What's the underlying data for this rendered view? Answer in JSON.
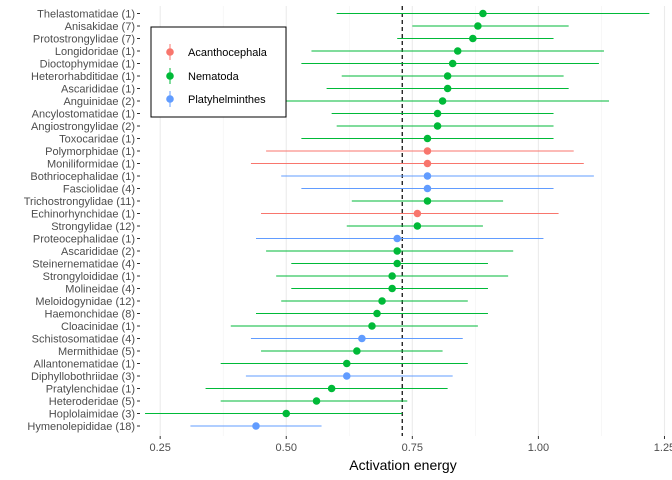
{
  "chart_data": {
    "type": "forest",
    "title": "",
    "xlabel": "Activation energy",
    "ylabel": "",
    "xlim": [
      0.21,
      1.255
    ],
    "xticks": [
      0.25,
      0.5,
      0.75,
      1.0,
      1.25
    ],
    "xtick_labels": [
      "0.25",
      "0.50",
      "0.75",
      "1.00",
      "1.25"
    ],
    "grid": "vertical major and minor lines",
    "reference_line": 0.73,
    "legend": {
      "position": "top-left (inside plot)",
      "entries": [
        "Acanthocephala",
        "Nematoda",
        "Platyhelminthes"
      ]
    },
    "colors": {
      "Acanthocephala": "#F8766D",
      "Nematoda": "#00BA38",
      "Platyhelminthes": "#619CFF"
    },
    "rows": [
      {
        "label": "Thelastomatidae (1)",
        "group": "Nematoda",
        "estimate": 0.89,
        "lower": 0.6,
        "upper": 1.22
      },
      {
        "label": "Anisakidae (7)",
        "group": "Nematoda",
        "estimate": 0.88,
        "lower": 0.75,
        "upper": 1.06
      },
      {
        "label": "Protostrongylidae (7)",
        "group": "Nematoda",
        "estimate": 0.87,
        "lower": 0.72,
        "upper": 1.03
      },
      {
        "label": "Longidoridae (1)",
        "group": "Nematoda",
        "estimate": 0.84,
        "lower": 0.55,
        "upper": 1.13
      },
      {
        "label": "Dioctophymidae (1)",
        "group": "Nematoda",
        "estimate": 0.83,
        "lower": 0.53,
        "upper": 1.12
      },
      {
        "label": "Heterorhabditidae (1)",
        "group": "Nematoda",
        "estimate": 0.82,
        "lower": 0.61,
        "upper": 1.05
      },
      {
        "label": "Ascarididae (1)",
        "group": "Nematoda",
        "estimate": 0.82,
        "lower": 0.58,
        "upper": 1.06
      },
      {
        "label": "Anguinidae (2)",
        "group": "Nematoda",
        "estimate": 0.81,
        "lower": 0.5,
        "upper": 1.14
      },
      {
        "label": "Ancylostomatidae (1)",
        "group": "Nematoda",
        "estimate": 0.8,
        "lower": 0.59,
        "upper": 1.03
      },
      {
        "label": "Angiostrongylidae (2)",
        "group": "Nematoda",
        "estimate": 0.8,
        "lower": 0.6,
        "upper": 1.03
      },
      {
        "label": "Toxocaridae (1)",
        "group": "Nematoda",
        "estimate": 0.78,
        "lower": 0.53,
        "upper": 1.03
      },
      {
        "label": "Polymorphidae (1)",
        "group": "Acanthocephala",
        "estimate": 0.78,
        "lower": 0.46,
        "upper": 1.07
      },
      {
        "label": "Moniliformidae (1)",
        "group": "Acanthocephala",
        "estimate": 0.78,
        "lower": 0.43,
        "upper": 1.09
      },
      {
        "label": "Bothriocephalidae (1)",
        "group": "Platyhelminthes",
        "estimate": 0.78,
        "lower": 0.49,
        "upper": 1.11
      },
      {
        "label": "Fasciolidae (4)",
        "group": "Platyhelminthes",
        "estimate": 0.78,
        "lower": 0.53,
        "upper": 1.03
      },
      {
        "label": "Trichostrongylidae (11)",
        "group": "Nematoda",
        "estimate": 0.78,
        "lower": 0.63,
        "upper": 0.93
      },
      {
        "label": "Echinorhynchidae (1)",
        "group": "Acanthocephala",
        "estimate": 0.76,
        "lower": 0.45,
        "upper": 1.04
      },
      {
        "label": "Strongylidae (12)",
        "group": "Nematoda",
        "estimate": 0.76,
        "lower": 0.62,
        "upper": 0.89
      },
      {
        "label": "Proteocephalidae (1)",
        "group": "Platyhelminthes",
        "estimate": 0.72,
        "lower": 0.44,
        "upper": 1.01
      },
      {
        "label": "Ascarididae (2)",
        "group": "Nematoda",
        "estimate": 0.72,
        "lower": 0.46,
        "upper": 0.95
      },
      {
        "label": "Steinernematidae (4)",
        "group": "Nematoda",
        "estimate": 0.72,
        "lower": 0.51,
        "upper": 0.9
      },
      {
        "label": "Strongyloididae (1)",
        "group": "Nematoda",
        "estimate": 0.71,
        "lower": 0.48,
        "upper": 0.94
      },
      {
        "label": "Molineidae (4)",
        "group": "Nematoda",
        "estimate": 0.71,
        "lower": 0.51,
        "upper": 0.9
      },
      {
        "label": "Meloidogynidae (12)",
        "group": "Nematoda",
        "estimate": 0.69,
        "lower": 0.49,
        "upper": 0.86
      },
      {
        "label": "Haemonchidae (8)",
        "group": "Nematoda",
        "estimate": 0.68,
        "lower": 0.44,
        "upper": 0.9
      },
      {
        "label": "Cloacinidae (1)",
        "group": "Nematoda",
        "estimate": 0.67,
        "lower": 0.39,
        "upper": 0.88
      },
      {
        "label": "Schistosomatidae (4)",
        "group": "Platyhelminthes",
        "estimate": 0.65,
        "lower": 0.43,
        "upper": 0.85
      },
      {
        "label": "Mermithidae (5)",
        "group": "Nematoda",
        "estimate": 0.64,
        "lower": 0.45,
        "upper": 0.81
      },
      {
        "label": "Allantonematidae (1)",
        "group": "Nematoda",
        "estimate": 0.62,
        "lower": 0.37,
        "upper": 0.86
      },
      {
        "label": "Diphyllobothriidae (3)",
        "group": "Platyhelminthes",
        "estimate": 0.62,
        "lower": 0.42,
        "upper": 0.83
      },
      {
        "label": "Pratylenchidae (1)",
        "group": "Nematoda",
        "estimate": 0.59,
        "lower": 0.34,
        "upper": 0.82
      },
      {
        "label": "Heteroderidae (5)",
        "group": "Nematoda",
        "estimate": 0.56,
        "lower": 0.37,
        "upper": 0.74
      },
      {
        "label": "Hoplolaimidae (3)",
        "group": "Nematoda",
        "estimate": 0.5,
        "lower": 0.22,
        "upper": 0.73
      },
      {
        "label": "Hymenolepididae (18)",
        "group": "Platyhelminthes",
        "estimate": 0.44,
        "lower": 0.31,
        "upper": 0.57
      }
    ]
  }
}
